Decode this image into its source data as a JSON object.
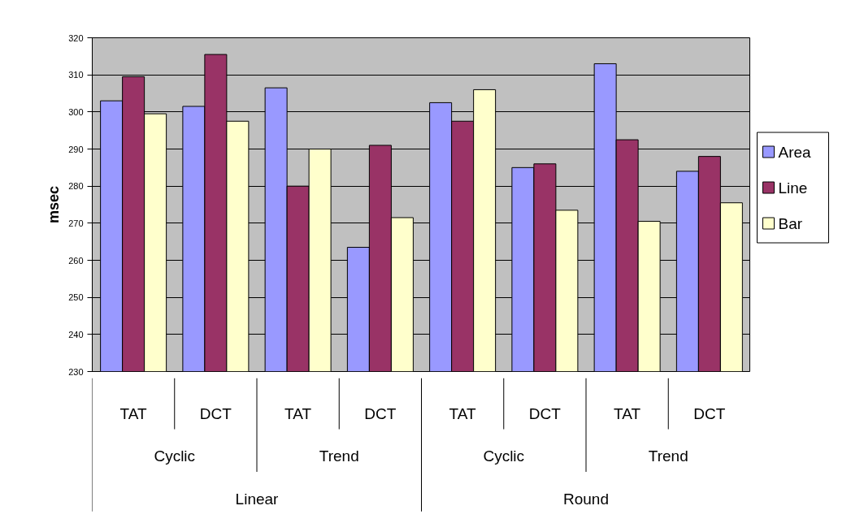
{
  "chart_data": {
    "type": "bar",
    "ylabel": "msec",
    "categories": [
      "TAT",
      "DCT",
      "TAT",
      "DCT",
      "TAT",
      "DCT",
      "TAT",
      "DCT"
    ],
    "series": [
      {
        "name": "Area",
        "color": "#9999ff",
        "values": [
          303,
          301.5,
          306.5,
          263.5,
          302.5,
          285,
          313,
          284
        ]
      },
      {
        "name": "Line",
        "color": "#993366",
        "values": [
          309.5,
          315.5,
          280,
          291,
          297.5,
          286,
          292.5,
          288
        ]
      },
      {
        "name": "Bar",
        "color": "#ffffcc",
        "values": [
          299.5,
          297.5,
          290,
          271.5,
          306,
          273.5,
          270.5,
          275.5
        ]
      }
    ],
    "annotations": [
      "Cyclic",
      "Trend",
      "Cyclic",
      "Trend",
      "Linear",
      "Round"
    ],
    "ylim": [
      230,
      320
    ],
    "yticks": [
      230,
      240,
      250,
      260,
      270,
      280,
      290,
      300,
      310,
      320
    ],
    "grid": "y",
    "legend": "right"
  }
}
